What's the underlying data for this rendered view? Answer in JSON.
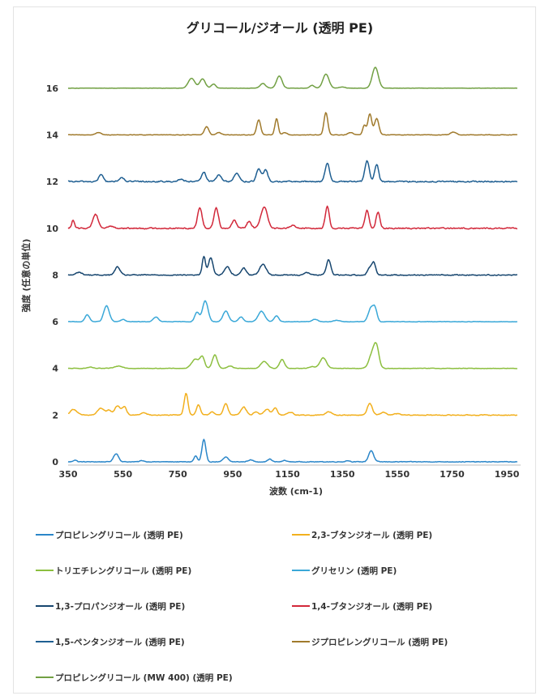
{
  "chart_data": {
    "type": "line",
    "title": "グリコール/ジオール (透明 PE)",
    "xlabel": "波数 (cm-1)",
    "ylabel": "強度 (任意の単位)",
    "xlim": [
      350,
      2000
    ],
    "ylim": [
      0,
      17
    ],
    "x_ticks": [
      350,
      550,
      750,
      950,
      1150,
      1350,
      1550,
      1750,
      1950
    ],
    "y_ticks": [
      0,
      2,
      4,
      6,
      8,
      10,
      12,
      14,
      16
    ],
    "grid": false,
    "legend_position": "bottom",
    "series": [
      {
        "name": "プロピレングリコール (透明 PE)",
        "color": "#2a86c9",
        "offset": 0,
        "noise": 0.02,
        "peaks": [
          [
            375,
            0.08,
            6
          ],
          [
            525,
            0.35,
            9
          ],
          [
            620,
            0.05,
            8
          ],
          [
            815,
            0.25,
            6
          ],
          [
            845,
            0.95,
            7
          ],
          [
            925,
            0.2,
            9
          ],
          [
            1015,
            0.08,
            9
          ],
          [
            1085,
            0.12,
            7
          ],
          [
            1140,
            0.06,
            7
          ],
          [
            1370,
            0.05,
            8
          ],
          [
            1455,
            0.48,
            9
          ]
        ]
      },
      {
        "name": "2,3-ブタンジオール (透明 PE)",
        "color": "#f2b01e",
        "offset": 2,
        "noise": 0.025,
        "peaks": [
          [
            370,
            0.25,
            12
          ],
          [
            470,
            0.3,
            12
          ],
          [
            500,
            0.2,
            8
          ],
          [
            530,
            0.4,
            10
          ],
          [
            555,
            0.35,
            8
          ],
          [
            625,
            0.1,
            10
          ],
          [
            780,
            0.95,
            7
          ],
          [
            825,
            0.45,
            7
          ],
          [
            875,
            0.15,
            8
          ],
          [
            925,
            0.5,
            8
          ],
          [
            990,
            0.35,
            10
          ],
          [
            1035,
            0.15,
            8
          ],
          [
            1075,
            0.25,
            10
          ],
          [
            1105,
            0.3,
            8
          ],
          [
            1160,
            0.12,
            10
          ],
          [
            1300,
            0.15,
            10
          ],
          [
            1450,
            0.5,
            9
          ],
          [
            1500,
            0.12,
            10
          ],
          [
            1550,
            0.06,
            10
          ]
        ]
      },
      {
        "name": "トリエチレングリコール (透明 PE)",
        "color": "#8cbf3f",
        "offset": 4,
        "noise": 0.015,
        "peaks": [
          [
            430,
            0.05,
            10
          ],
          [
            535,
            0.1,
            15
          ],
          [
            815,
            0.4,
            14
          ],
          [
            840,
            0.45,
            8
          ],
          [
            885,
            0.58,
            9
          ],
          [
            940,
            0.1,
            10
          ],
          [
            1065,
            0.3,
            12
          ],
          [
            1130,
            0.38,
            9
          ],
          [
            1240,
            0.08,
            10
          ],
          [
            1280,
            0.45,
            12
          ],
          [
            1460,
            0.65,
            12
          ],
          [
            1475,
            0.75,
            9
          ]
        ]
      },
      {
        "name": "グリセリン (透明 PE)",
        "color": "#3aa8d8",
        "offset": 6,
        "noise": 0.015,
        "peaks": [
          [
            420,
            0.3,
            8
          ],
          [
            490,
            0.68,
            10
          ],
          [
            550,
            0.1,
            8
          ],
          [
            670,
            0.2,
            9
          ],
          [
            820,
            0.4,
            8
          ],
          [
            850,
            0.9,
            10
          ],
          [
            925,
            0.45,
            10
          ],
          [
            980,
            0.2,
            9
          ],
          [
            1055,
            0.45,
            12
          ],
          [
            1110,
            0.25,
            8
          ],
          [
            1250,
            0.1,
            10
          ],
          [
            1330,
            0.06,
            10
          ],
          [
            1455,
            0.6,
            10
          ],
          [
            1470,
            0.45,
            7
          ]
        ]
      },
      {
        "name": "1,3-プロパンジオール (透明 PE)",
        "color": "#17466f",
        "offset": 8,
        "noise": 0.03,
        "peaks": [
          [
            390,
            0.12,
            10
          ],
          [
            530,
            0.35,
            9
          ],
          [
            845,
            0.8,
            6
          ],
          [
            870,
            0.75,
            8
          ],
          [
            930,
            0.35,
            10
          ],
          [
            990,
            0.3,
            9
          ],
          [
            1060,
            0.45,
            12
          ],
          [
            1220,
            0.1,
            10
          ],
          [
            1300,
            0.65,
            8
          ],
          [
            1450,
            0.3,
            8
          ],
          [
            1465,
            0.5,
            7
          ]
        ]
      },
      {
        "name": "1,4-ブタンジオール (透明 PE)",
        "color": "#d2283a",
        "offset": 10,
        "noise": 0.04,
        "peaks": [
          [
            368,
            0.35,
            5
          ],
          [
            450,
            0.6,
            10
          ],
          [
            505,
            0.1,
            10
          ],
          [
            830,
            0.9,
            8
          ],
          [
            890,
            0.9,
            8
          ],
          [
            955,
            0.35,
            8
          ],
          [
            1010,
            0.3,
            8
          ],
          [
            1065,
            0.9,
            12
          ],
          [
            1170,
            0.12,
            10
          ],
          [
            1295,
            0.95,
            7
          ],
          [
            1440,
            0.8,
            7
          ],
          [
            1480,
            0.7,
            7
          ]
        ]
      },
      {
        "name": "1,5-ペンタンジオール (透明 PE)",
        "color": "#1f5f92",
        "offset": 12,
        "noise": 0.04,
        "peaks": [
          [
            470,
            0.3,
            8
          ],
          [
            545,
            0.15,
            10
          ],
          [
            760,
            0.1,
            10
          ],
          [
            845,
            0.4,
            8
          ],
          [
            900,
            0.28,
            10
          ],
          [
            965,
            0.35,
            10
          ],
          [
            1045,
            0.55,
            8
          ],
          [
            1070,
            0.5,
            8
          ],
          [
            1295,
            0.8,
            8
          ],
          [
            1440,
            0.88,
            8
          ],
          [
            1475,
            0.75,
            7
          ]
        ]
      },
      {
        "name": "ジプロピレングリコール (透明 PE)",
        "color": "#a07a2c",
        "offset": 14,
        "noise": 0.015,
        "peaks": [
          [
            460,
            0.1,
            10
          ],
          [
            855,
            0.35,
            8
          ],
          [
            900,
            0.1,
            8
          ],
          [
            1045,
            0.65,
            7
          ],
          [
            1110,
            0.7,
            6
          ],
          [
            1140,
            0.1,
            8
          ],
          [
            1290,
            0.95,
            7
          ],
          [
            1380,
            0.1,
            9
          ],
          [
            1430,
            0.4,
            6
          ],
          [
            1450,
            0.9,
            7
          ],
          [
            1475,
            0.7,
            8
          ],
          [
            1755,
            0.12,
            10
          ]
        ]
      },
      {
        "name": "プロピレングリコール (MW 400) (透明 PE)",
        "color": "#71a043",
        "offset": 16,
        "noise": 0.01,
        "peaks": [
          [
            800,
            0.42,
            12
          ],
          [
            840,
            0.4,
            10
          ],
          [
            880,
            0.18,
            8
          ],
          [
            1060,
            0.2,
            10
          ],
          [
            1120,
            0.52,
            10
          ],
          [
            1240,
            0.12,
            8
          ],
          [
            1290,
            0.6,
            11
          ],
          [
            1350,
            0.05,
            10
          ],
          [
            1470,
            0.9,
            11
          ]
        ]
      }
    ]
  }
}
